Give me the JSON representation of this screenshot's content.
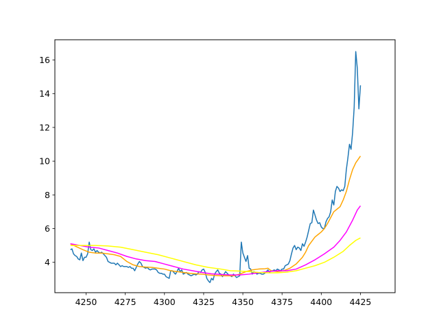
{
  "chart_data": {
    "type": "line",
    "title": "",
    "xlabel": "",
    "ylabel": "",
    "xlim": [
      4230.1,
      4447.1
    ],
    "ylim": [
      2.2,
      17.2
    ],
    "grid": false,
    "legend": "none",
    "x_ticks": [
      {
        "value": 4250,
        "label": "4250"
      },
      {
        "value": 4275,
        "label": "4275"
      },
      {
        "value": 4300,
        "label": "4300"
      },
      {
        "value": 4325,
        "label": "4325"
      },
      {
        "value": 4350,
        "label": "4350"
      },
      {
        "value": 4375,
        "label": "4375"
      },
      {
        "value": 4400,
        "label": "4400"
      },
      {
        "value": 4425,
        "label": "4425"
      }
    ],
    "y_ticks": [
      {
        "value": 4,
        "label": "4"
      },
      {
        "value": 6,
        "label": "6"
      },
      {
        "value": 8,
        "label": "8"
      },
      {
        "value": 10,
        "label": "10"
      },
      {
        "value": 12,
        "label": "12"
      },
      {
        "value": 14,
        "label": "14"
      },
      {
        "value": 16,
        "label": "16"
      }
    ],
    "series": [
      {
        "color": "#1f77b4",
        "points": [
          [
            4240,
            4.75
          ],
          [
            4241,
            4.8
          ],
          [
            4242,
            4.5
          ],
          [
            4243,
            4.4
          ],
          [
            4244,
            4.35
          ],
          [
            4245,
            4.2
          ],
          [
            4246,
            4.15
          ],
          [
            4247,
            4.55
          ],
          [
            4248,
            4.1
          ],
          [
            4249,
            4.3
          ],
          [
            4250,
            4.3
          ],
          [
            4251,
            4.5
          ],
          [
            4252,
            5.2
          ],
          [
            4253,
            4.75
          ],
          [
            4254,
            4.7
          ],
          [
            4255,
            4.8
          ],
          [
            4256,
            4.6
          ],
          [
            4257,
            4.7
          ],
          [
            4258,
            4.6
          ],
          [
            4259,
            4.55
          ],
          [
            4260,
            4.6
          ],
          [
            4261,
            4.5
          ],
          [
            4262,
            4.4
          ],
          [
            4263,
            4.3
          ],
          [
            4264,
            4.05
          ],
          [
            4265,
            4.0
          ],
          [
            4266,
            3.95
          ],
          [
            4267,
            3.95
          ],
          [
            4268,
            3.95
          ],
          [
            4269,
            3.85
          ],
          [
            4270,
            3.95
          ],
          [
            4271,
            3.85
          ],
          [
            4272,
            3.75
          ],
          [
            4273,
            3.8
          ],
          [
            4274,
            3.75
          ],
          [
            4275,
            3.75
          ],
          [
            4276,
            3.75
          ],
          [
            4277,
            3.7
          ],
          [
            4278,
            3.75
          ],
          [
            4279,
            3.65
          ],
          [
            4280,
            3.65
          ],
          [
            4281,
            3.5
          ],
          [
            4282,
            3.7
          ],
          [
            4283,
            3.9
          ],
          [
            4284,
            4.05
          ],
          [
            4285,
            3.95
          ],
          [
            4286,
            3.75
          ],
          [
            4287,
            3.7
          ],
          [
            4288,
            3.65
          ],
          [
            4289,
            3.7
          ],
          [
            4290,
            3.6
          ],
          [
            4291,
            3.55
          ],
          [
            4292,
            3.6
          ],
          [
            4293,
            3.6
          ],
          [
            4294,
            3.6
          ],
          [
            4295,
            3.55
          ],
          [
            4296,
            3.4
          ],
          [
            4297,
            3.35
          ],
          [
            4298,
            3.35
          ],
          [
            4299,
            3.3
          ],
          [
            4300,
            3.3
          ],
          [
            4301,
            3.15
          ],
          [
            4302,
            3.1
          ],
          [
            4303,
            3.05
          ],
          [
            4304,
            3.5
          ],
          [
            4305,
            3.5
          ],
          [
            4306,
            3.4
          ],
          [
            4307,
            3.3
          ],
          [
            4308,
            3.45
          ],
          [
            4309,
            3.65
          ],
          [
            4310,
            3.45
          ],
          [
            4311,
            3.55
          ],
          [
            4312,
            3.3
          ],
          [
            4313,
            3.35
          ],
          [
            4314,
            3.4
          ],
          [
            4315,
            3.3
          ],
          [
            4316,
            3.25
          ],
          [
            4317,
            3.2
          ],
          [
            4318,
            3.25
          ],
          [
            4319,
            3.3
          ],
          [
            4320,
            3.25
          ],
          [
            4321,
            3.3
          ],
          [
            4322,
            3.45
          ],
          [
            4323,
            3.4
          ],
          [
            4324,
            3.55
          ],
          [
            4325,
            3.6
          ],
          [
            4326,
            3.4
          ],
          [
            4327,
            3.05
          ],
          [
            4328,
            2.9
          ],
          [
            4329,
            2.8
          ],
          [
            4330,
            3.05
          ],
          [
            4331,
            2.95
          ],
          [
            4332,
            3.3
          ],
          [
            4333,
            3.45
          ],
          [
            4334,
            3.55
          ],
          [
            4335,
            3.35
          ],
          [
            4336,
            3.3
          ],
          [
            4337,
            3.15
          ],
          [
            4338,
            3.3
          ],
          [
            4339,
            3.45
          ],
          [
            4340,
            3.35
          ],
          [
            4341,
            3.25
          ],
          [
            4342,
            3.2
          ],
          [
            4343,
            3.15
          ],
          [
            4344,
            3.3
          ],
          [
            4345,
            3.2
          ],
          [
            4346,
            3.1
          ],
          [
            4347,
            3.15
          ],
          [
            4348,
            3.2
          ],
          [
            4349,
            5.2
          ],
          [
            4350,
            4.55
          ],
          [
            4351,
            4.3
          ],
          [
            4352,
            4.05
          ],
          [
            4353,
            4.4
          ],
          [
            4354,
            3.65
          ],
          [
            4355,
            3.6
          ],
          [
            4356,
            3.3
          ],
          [
            4357,
            3.45
          ],
          [
            4358,
            3.4
          ],
          [
            4359,
            3.3
          ],
          [
            4360,
            3.35
          ],
          [
            4361,
            3.35
          ],
          [
            4362,
            3.3
          ],
          [
            4363,
            3.3
          ],
          [
            4364,
            3.35
          ],
          [
            4365,
            3.45
          ],
          [
            4366,
            3.55
          ],
          [
            4367,
            3.4
          ],
          [
            4368,
            3.5
          ],
          [
            4369,
            3.5
          ],
          [
            4370,
            3.55
          ],
          [
            4371,
            3.5
          ],
          [
            4372,
            3.6
          ],
          [
            4373,
            3.55
          ],
          [
            4374,
            3.5
          ],
          [
            4375,
            3.6
          ],
          [
            4376,
            3.6
          ],
          [
            4377,
            3.8
          ],
          [
            4378,
            3.85
          ],
          [
            4379,
            3.9
          ],
          [
            4380,
            4.1
          ],
          [
            4381,
            4.5
          ],
          [
            4382,
            4.85
          ],
          [
            4383,
            5.0
          ],
          [
            4384,
            4.75
          ],
          [
            4385,
            4.9
          ],
          [
            4386,
            4.85
          ],
          [
            4387,
            4.7
          ],
          [
            4388,
            5.1
          ],
          [
            4389,
            4.95
          ],
          [
            4390,
            5.2
          ],
          [
            4391,
            5.5
          ],
          [
            4392,
            5.9
          ],
          [
            4393,
            6.3
          ],
          [
            4394,
            6.35
          ],
          [
            4395,
            7.1
          ],
          [
            4396,
            6.8
          ],
          [
            4397,
            6.5
          ],
          [
            4398,
            6.3
          ],
          [
            4399,
            6.35
          ],
          [
            4400,
            6.1
          ],
          [
            4401,
            6.0
          ],
          [
            4402,
            6.0
          ],
          [
            4403,
            6.4
          ],
          [
            4404,
            6.6
          ],
          [
            4405,
            6.7
          ],
          [
            4406,
            7.0
          ],
          [
            4407,
            7.7
          ],
          [
            4408,
            7.4
          ],
          [
            4409,
            8.2
          ],
          [
            4410,
            8.5
          ],
          [
            4411,
            8.4
          ],
          [
            4412,
            8.2
          ],
          [
            4413,
            8.3
          ],
          [
            4414,
            8.25
          ],
          [
            4415,
            8.5
          ],
          [
            4416,
            9.5
          ],
          [
            4417,
            10.2
          ],
          [
            4418,
            11.0
          ],
          [
            4419,
            10.7
          ],
          [
            4420,
            11.7
          ],
          [
            4421,
            13.2
          ],
          [
            4422,
            16.5
          ],
          [
            4423,
            15.5
          ],
          [
            4424,
            13.1
          ],
          [
            4425,
            14.5
          ]
        ]
      },
      {
        "color": "#ffa500",
        "points": [
          [
            4240,
            5.1
          ],
          [
            4244,
            4.92
          ],
          [
            4248,
            4.75
          ],
          [
            4252,
            4.6
          ],
          [
            4256,
            4.55
          ],
          [
            4260,
            4.55
          ],
          [
            4264,
            4.5
          ],
          [
            4268,
            4.45
          ],
          [
            4272,
            4.35
          ],
          [
            4276,
            4.05
          ],
          [
            4280,
            3.85
          ],
          [
            4284,
            3.75
          ],
          [
            4288,
            3.72
          ],
          [
            4292,
            3.7
          ],
          [
            4296,
            3.65
          ],
          [
            4300,
            3.6
          ],
          [
            4304,
            3.5
          ],
          [
            4308,
            3.45
          ],
          [
            4312,
            3.4
          ],
          [
            4316,
            3.35
          ],
          [
            4320,
            3.32
          ],
          [
            4324,
            3.3
          ],
          [
            4328,
            3.25
          ],
          [
            4332,
            3.22
          ],
          [
            4336,
            3.2
          ],
          [
            4340,
            3.2
          ],
          [
            4344,
            3.2
          ],
          [
            4348,
            3.3
          ],
          [
            4352,
            3.45
          ],
          [
            4356,
            3.55
          ],
          [
            4360,
            3.6
          ],
          [
            4364,
            3.62
          ],
          [
            4366,
            3.65
          ],
          [
            4368,
            3.5
          ],
          [
            4372,
            3.45
          ],
          [
            4376,
            3.5
          ],
          [
            4380,
            3.65
          ],
          [
            4384,
            3.9
          ],
          [
            4388,
            4.3
          ],
          [
            4390,
            4.6
          ],
          [
            4392,
            5.0
          ],
          [
            4394,
            5.25
          ],
          [
            4396,
            5.5
          ],
          [
            4398,
            5.65
          ],
          [
            4400,
            5.8
          ],
          [
            4402,
            6.0
          ],
          [
            4404,
            6.3
          ],
          [
            4406,
            6.65
          ],
          [
            4408,
            7.0
          ],
          [
            4410,
            7.15
          ],
          [
            4412,
            7.3
          ],
          [
            4414,
            7.7
          ],
          [
            4416,
            8.2
          ],
          [
            4418,
            8.9
          ],
          [
            4420,
            9.5
          ],
          [
            4422,
            9.9
          ],
          [
            4425,
            10.3
          ]
        ]
      },
      {
        "color": "#ff00ff",
        "points": [
          [
            4240,
            5.1
          ],
          [
            4246,
            5.0
          ],
          [
            4252,
            4.9
          ],
          [
            4258,
            4.85
          ],
          [
            4264,
            4.7
          ],
          [
            4270,
            4.55
          ],
          [
            4276,
            4.35
          ],
          [
            4282,
            4.2
          ],
          [
            4288,
            4.1
          ],
          [
            4294,
            4.05
          ],
          [
            4300,
            3.9
          ],
          [
            4306,
            3.75
          ],
          [
            4312,
            3.6
          ],
          [
            4318,
            3.5
          ],
          [
            4324,
            3.4
          ],
          [
            4330,
            3.32
          ],
          [
            4336,
            3.28
          ],
          [
            4342,
            3.25
          ],
          [
            4348,
            3.25
          ],
          [
            4354,
            3.3
          ],
          [
            4360,
            3.38
          ],
          [
            4366,
            3.45
          ],
          [
            4372,
            3.5
          ],
          [
            4378,
            3.5
          ],
          [
            4384,
            3.6
          ],
          [
            4390,
            3.85
          ],
          [
            4396,
            4.15
          ],
          [
            4402,
            4.5
          ],
          [
            4408,
            4.9
          ],
          [
            4412,
            5.3
          ],
          [
            4416,
            5.8
          ],
          [
            4420,
            6.5
          ],
          [
            4423,
            7.1
          ],
          [
            4425,
            7.35
          ]
        ]
      },
      {
        "color": "#ffff00",
        "points": [
          [
            4240,
            5.0
          ],
          [
            4248,
            5.0
          ],
          [
            4256,
            5.0
          ],
          [
            4264,
            4.97
          ],
          [
            4272,
            4.9
          ],
          [
            4280,
            4.75
          ],
          [
            4288,
            4.6
          ],
          [
            4296,
            4.45
          ],
          [
            4304,
            4.25
          ],
          [
            4312,
            4.05
          ],
          [
            4320,
            3.85
          ],
          [
            4328,
            3.7
          ],
          [
            4336,
            3.6
          ],
          [
            4342,
            3.5
          ],
          [
            4348,
            3.48
          ],
          [
            4354,
            3.45
          ],
          [
            4360,
            3.4
          ],
          [
            4366,
            3.38
          ],
          [
            4372,
            3.38
          ],
          [
            4378,
            3.42
          ],
          [
            4384,
            3.5
          ],
          [
            4390,
            3.65
          ],
          [
            4396,
            3.8
          ],
          [
            4402,
            4.0
          ],
          [
            4408,
            4.3
          ],
          [
            4414,
            4.65
          ],
          [
            4418,
            5.0
          ],
          [
            4422,
            5.3
          ],
          [
            4425,
            5.45
          ]
        ]
      }
    ]
  }
}
